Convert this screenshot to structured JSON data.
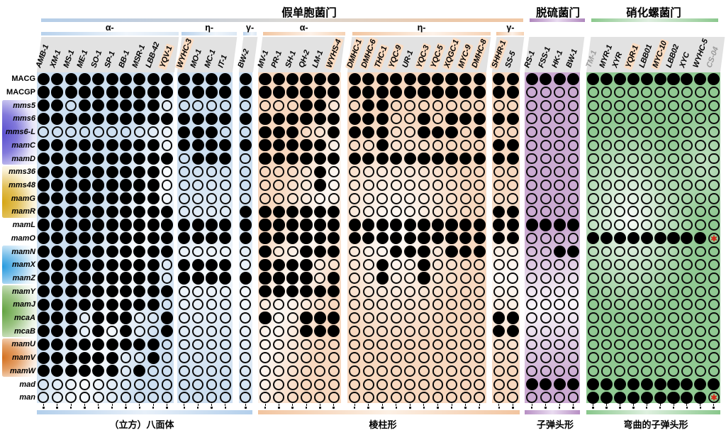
{
  "figure": {
    "phylum_headers": [
      {
        "label": "假单胞菌门",
        "sections": [
          "blue",
          "orange"
        ]
      },
      {
        "label": "脱硫菌门",
        "sections": [
          "purple"
        ]
      },
      {
        "label": "硝化螺菌门",
        "sections": [
          "green"
        ]
      }
    ],
    "shape_footers": [
      {
        "section": "blue",
        "label": "（立方）八面体"
      },
      {
        "section": "orange",
        "label": "棱柱形"
      },
      {
        "section": "purple",
        "label": "子弹头形"
      },
      {
        "section": "green",
        "label": "弯曲的子弹头形"
      }
    ]
  },
  "chart_data": {
    "type": "heatmap",
    "title": "",
    "description": "Presence (filled dot) / absence (open circle) matrix of magnetosome genes (rows) across magnetotactic bacteria strains (columns) grouped by phylum and class",
    "col_groups": [
      {
        "section": "blue",
        "class_label": "α-",
        "cols": [
          "AMB-1",
          "XM-1",
          "MS-1",
          "ME-1",
          "SO-1",
          "SP-1",
          "BB-1",
          "MSR-1",
          "LBB-42",
          "YQV-1"
        ]
      },
      {
        "section": "blue",
        "class_label": "η-",
        "cols": [
          "WYHC-3",
          "MO-1",
          "MC-1",
          "IT-1"
        ]
      },
      {
        "section": "blue",
        "class_label": "γ-",
        "cols": [
          "BW-2"
        ]
      },
      {
        "section": "orange",
        "class_label": "α-",
        "cols": [
          "MV-1",
          "PR-1",
          "SH-1",
          "QH-2",
          "LM-1",
          "WYHS-4"
        ]
      },
      {
        "section": "orange",
        "class_label": "η-",
        "cols": [
          "DMHC-1",
          "DMHC-6",
          "THC-1",
          "YQC-9",
          "UR-1",
          "YQC-3",
          "YQC-5",
          "XQGC-1",
          "MYC-9",
          "DMHC-8"
        ]
      },
      {
        "section": "orange",
        "class_label": "γ-",
        "cols": [
          "SHHR-1",
          "SS-5"
        ]
      },
      {
        "section": "purple",
        "class_label": "",
        "cols": [
          "RS-1",
          "FSS-1",
          "HK-1",
          "BW-1"
        ]
      },
      {
        "section": "green",
        "class_label": "",
        "cols": [
          "TM-1",
          "MYR-1",
          "XYR",
          "YQR-1",
          "LBB01",
          "MYC-10",
          "LBB02",
          "XYC",
          "WYHC-5",
          "CS-04"
        ]
      }
    ],
    "highlighted_cols": [
      "YQV-1",
      "WYHC-3",
      "WYHS-4",
      "DMHC-1",
      "DMHC-6",
      "THC-1",
      "YQC-9",
      "YQC-3",
      "YQC-5",
      "XQGC-1",
      "MYC-9",
      "DMHC-8",
      "SHHR-1",
      "YQR-1",
      "MYC-10"
    ],
    "muted_cols": [
      "TM-1",
      "CS-04"
    ],
    "row_groups": [
      {
        "color": "plain",
        "italic": false,
        "rows": [
          "MACG",
          "MACGP"
        ]
      },
      {
        "color": "indigo",
        "italic": true,
        "rows": [
          "mms5",
          "mms6",
          "mms6-L",
          "mamC",
          "mamD"
        ]
      },
      {
        "color": "gold",
        "italic": true,
        "rows": [
          "mms36",
          "mms48",
          "mamG",
          "mamR"
        ]
      },
      {
        "color": "plain",
        "italic": true,
        "rows": [
          "mamL",
          "mamO"
        ]
      },
      {
        "color": "cyan",
        "italic": true,
        "rows": [
          "mamN",
          "mamX",
          "mamZ"
        ]
      },
      {
        "color": "green",
        "italic": true,
        "rows": [
          "mamY",
          "mamJ",
          "mcaA",
          "mcaB"
        ]
      },
      {
        "color": "orange",
        "italic": true,
        "rows": [
          "mamU",
          "mamV",
          "mamW"
        ]
      },
      {
        "color": "plain",
        "italic": true,
        "rows": [
          "mad",
          "man"
        ]
      }
    ],
    "matrix": {
      "MACG": "111111111111111 111111111111111111 1111 1111111111",
      "MACGP": "111111111111111 111111111111111111 0000 0000000000",
      "mms5": "110111111000000 000110011000000000 0000 0000000000",
      "mms6": "111111111111111 111111111001011111 0000 0000000000",
      "mms6-L": "000000000011100 111001111001110100 0000 0000000000",
      "mamC": "111111111011111 111110001000000011 0000 0000000000",
      "mamD": "111111111101110 111111111111111111 0000 0000000000",
      "mms36": "111111111000000 000010000000000000 0000 0000000000",
      "mms48": "111111111000000 000010000000000000 0000 0000000000",
      "mamG": "111111111000000 000000000000000000 0000 0000000000",
      "mamR": "111111111100001 111111000000000011 0000 0000000000",
      "mamL": "111111111111111 111111111111111111 1111 0000000000",
      "mamO": "111111111111111 111111111111111111 0000 111111111a",
      "mamN": "111111111100000 100111000111011100 0011 0000000000",
      "mamX": "111111111011110 111100001001000000 0000 0000000000",
      "mamZ": "111111111011111 111101001001000000 0000 0000000000",
      "mamY": "111111111100000 111111000000000000 0000 0000000000",
      "mamJ": "111111111000000 000000000000000000 0000 0000000000",
      "mcaA": "111011100100000 100111000000000011 0000 0000000000",
      "mcaB": "111010100100000 000111000000000011 0000 0000000000",
      "mamU": "111111111000000 000000000000000000 0000 0000000000",
      "mamV": "111111001000000 000000000000000000 0000 0000000000",
      "mamW": "111111010000000 000000000000000000 0000 0000000000",
      "mad": "000000000000000 000000000000000000 1111 1111111111",
      "man": "000000000000000 000000000000000000 0000 111111111a"
    },
    "cell_symbols": {
      "1": "filled dot (present)",
      "0": "open circle (absent)",
      "a": "open circle with red asterisk"
    },
    "colors": {
      "blue_section": "#cddff1",
      "orange_section": "#f8d8bf",
      "purple_section": "#cbaad2",
      "green_section": "#90c992",
      "highlight_label": "#fbdcc2",
      "label_area_gray": "#e2e2e2",
      "muted_label_text": "#9b9b9b",
      "asterisk_red": "#d3291c",
      "dot_black": "#000000"
    }
  }
}
